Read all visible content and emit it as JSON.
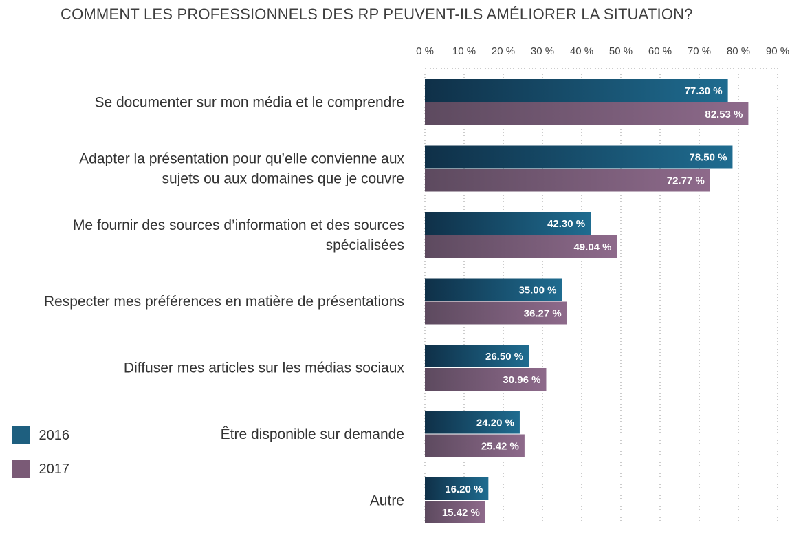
{
  "chart_data": {
    "type": "bar",
    "orientation": "horizontal",
    "title": "COMMENT LES PROFESSIONNELS DES RP PEUVENT-ILS AMÉLIORER LA SITUATION?",
    "xlim": [
      0,
      90
    ],
    "x_ticks": [
      "0 %",
      "10 %",
      "20 %",
      "30 %",
      "40 %",
      "50 %",
      "60 %",
      "70 %",
      "80 %",
      "90 %"
    ],
    "grid": "vertical dotted",
    "legend_position": "bottom-left",
    "categories": [
      [
        "Se documenter sur mon média et le comprendre"
      ],
      [
        "Adapter la présentation pour qu’elle convienne aux",
        "sujets ou aux domaines que je couvre"
      ],
      [
        "Me fournir des sources d’information et des sources",
        "spécialisées"
      ],
      [
        "Respecter mes préférences en matière de présentations"
      ],
      [
        "Diffuser mes articles sur les médias sociaux"
      ],
      [
        "Être disponible sur demande"
      ],
      [
        "Autre"
      ]
    ],
    "series": [
      {
        "name": "2016",
        "color": "#1e5f7f",
        "values": [
          77.3,
          78.5,
          42.3,
          35.0,
          26.5,
          24.2,
          16.2
        ],
        "labels": [
          "77.30 %",
          "78.50 %",
          "42.30 %",
          "35.00 %",
          "26.50 %",
          "24.20 %",
          "16.20 %"
        ]
      },
      {
        "name": "2017",
        "color": "#7a5a76",
        "values": [
          82.53,
          72.77,
          49.04,
          36.27,
          30.96,
          25.42,
          15.42
        ],
        "labels": [
          "82.53 %",
          "72.77 %",
          "49.04 %",
          "36.27 %",
          "30.96 %",
          "25.42 %",
          "15.42 %"
        ]
      }
    ]
  }
}
